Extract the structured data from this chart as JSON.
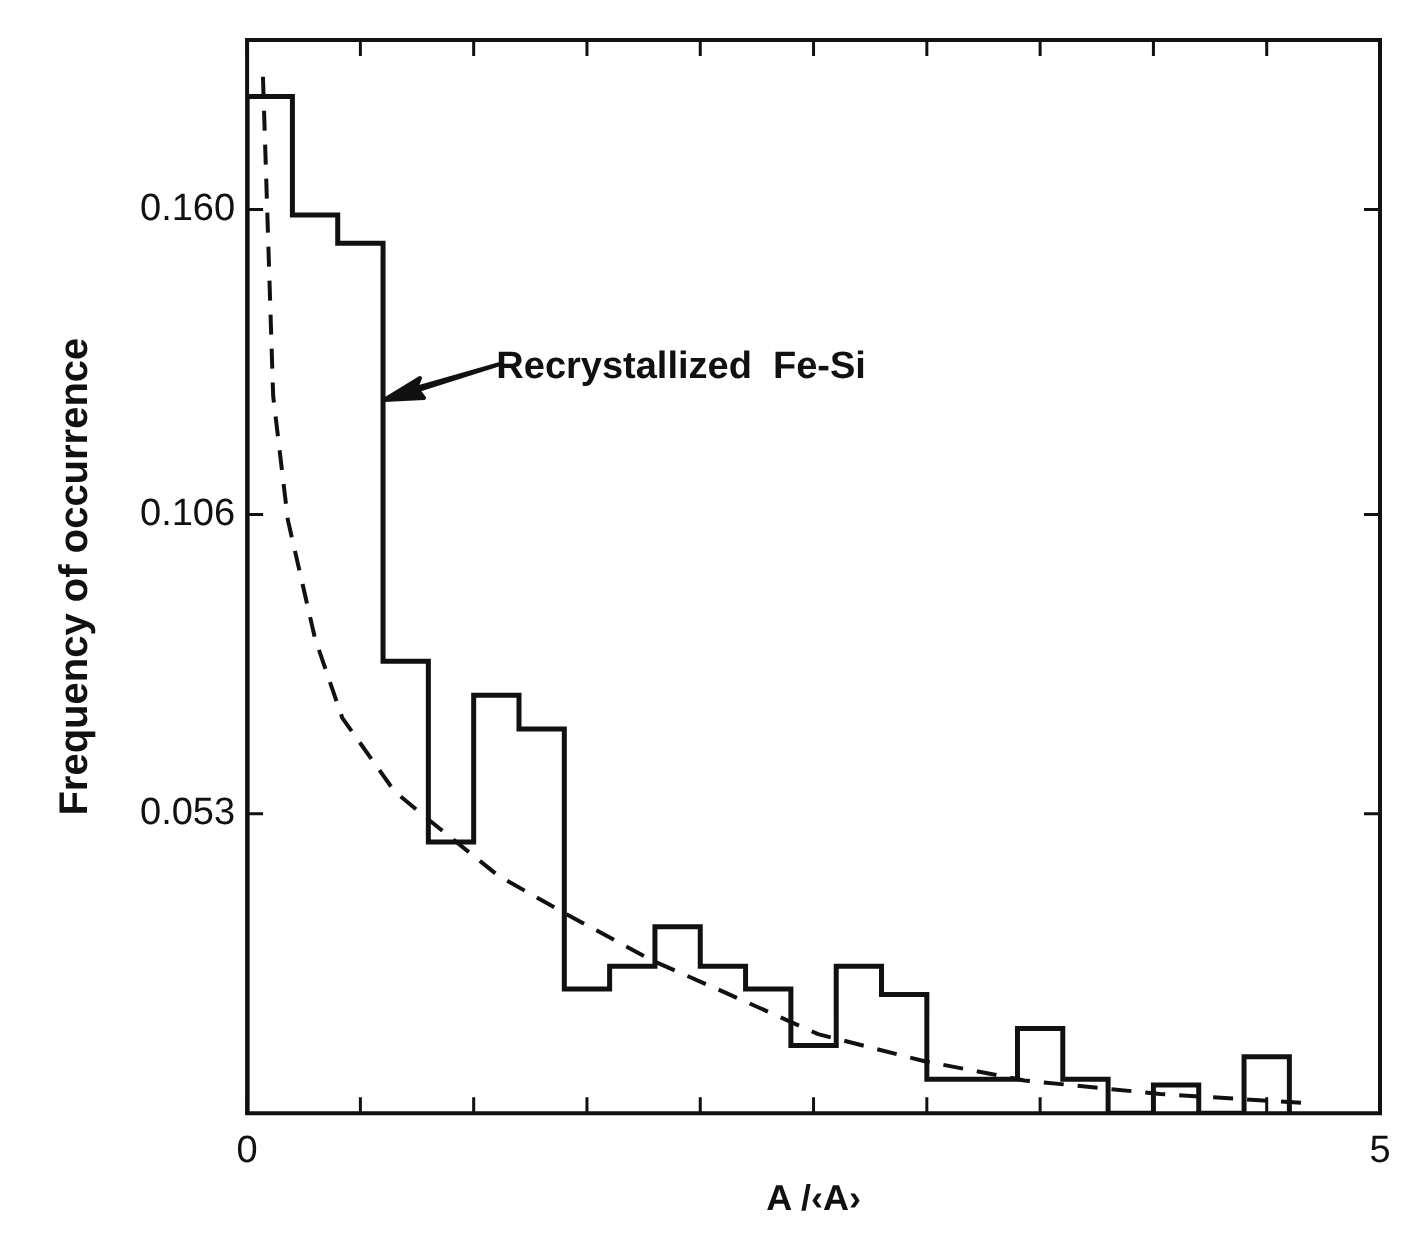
{
  "chart_data": {
    "type": "histogram",
    "xlabel": "A /‹A›",
    "ylabel": "Frequency of occurrence",
    "bins": [
      0,
      0.2,
      0.4,
      0.6,
      0.8,
      1.0,
      1.2,
      1.4,
      1.6,
      1.8,
      2.0,
      2.2,
      2.4,
      2.6,
      2.8,
      3.0,
      3.2,
      3.4,
      3.6,
      3.8,
      4.0,
      4.2,
      4.4,
      4.6
    ],
    "values": [
      0.18,
      0.159,
      0.154,
      0.08,
      0.048,
      0.074,
      0.068,
      0.022,
      0.026,
      0.033,
      0.026,
      0.022,
      0.012,
      0.026,
      0.021,
      0.006,
      0.006,
      0.015,
      0.006,
      0,
      0.005,
      0,
      0.01
    ],
    "color": "#111111",
    "series": [
      {
        "type": "line",
        "line_style": "dashed",
        "color": "#111111",
        "x": [
          0.07,
          0.115,
          0.18,
          0.3,
          0.42,
          0.65,
          0.8,
          1.11,
          1.42,
          1.79,
          2.13,
          2.52,
          2.99,
          3.43,
          4.03,
          4.67
        ],
        "values": [
          0.1835,
          0.127,
          0.105,
          0.084,
          0.07,
          0.057,
          0.052,
          0.042,
          0.035,
          0.027,
          0.021,
          0.014,
          0.0092,
          0.0058,
          0.0034,
          0.0018
        ]
      }
    ],
    "xlim": [
      0,
      5
    ],
    "ylim": [
      0,
      0.19
    ],
    "xticks": [
      0,
      {
        "value": 0.5,
        "label": null
      },
      {
        "value": 1,
        "label": null
      },
      {
        "value": 1.5,
        "label": null
      },
      {
        "value": 2,
        "label": null
      },
      {
        "value": 2.5,
        "label": null
      },
      {
        "value": 3,
        "label": null
      },
      {
        "value": 3.5,
        "label": null
      },
      {
        "value": 4,
        "label": null
      },
      {
        "value": 4.5,
        "label": null
      },
      5
    ],
    "yticks": [
      0.053,
      0.106,
      {
        "value": 0.16,
        "label": "0.160"
      }
    ],
    "annotations": [
      "Recrystallized  Fe-Si"
    ],
    "grid": false,
    "legend": false
  }
}
